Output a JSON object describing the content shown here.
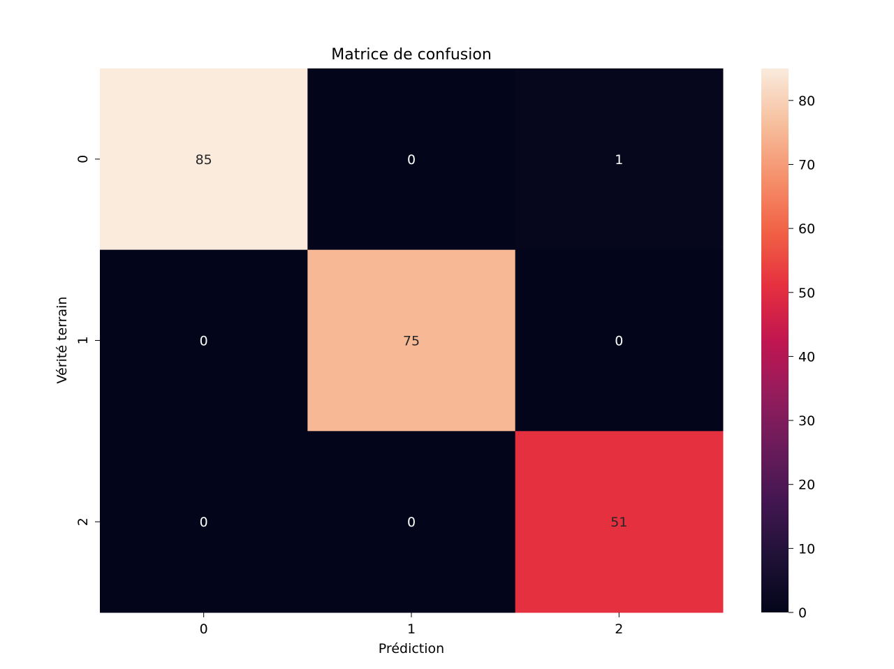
{
  "chart_data": {
    "type": "heatmap",
    "title": "Matrice de confusion",
    "xlabel": "Prédiction",
    "ylabel": "Vérité terrain",
    "x_categories": [
      "0",
      "1",
      "2"
    ],
    "y_categories": [
      "0",
      "1",
      "2"
    ],
    "values": [
      [
        85,
        0,
        1
      ],
      [
        0,
        75,
        0
      ],
      [
        0,
        0,
        51
      ]
    ],
    "colorbar": {
      "min": 0,
      "max": 85,
      "ticks": [
        0,
        10,
        20,
        30,
        40,
        50,
        60,
        70,
        80
      ],
      "colormap": "rocket"
    },
    "annotations": true
  }
}
